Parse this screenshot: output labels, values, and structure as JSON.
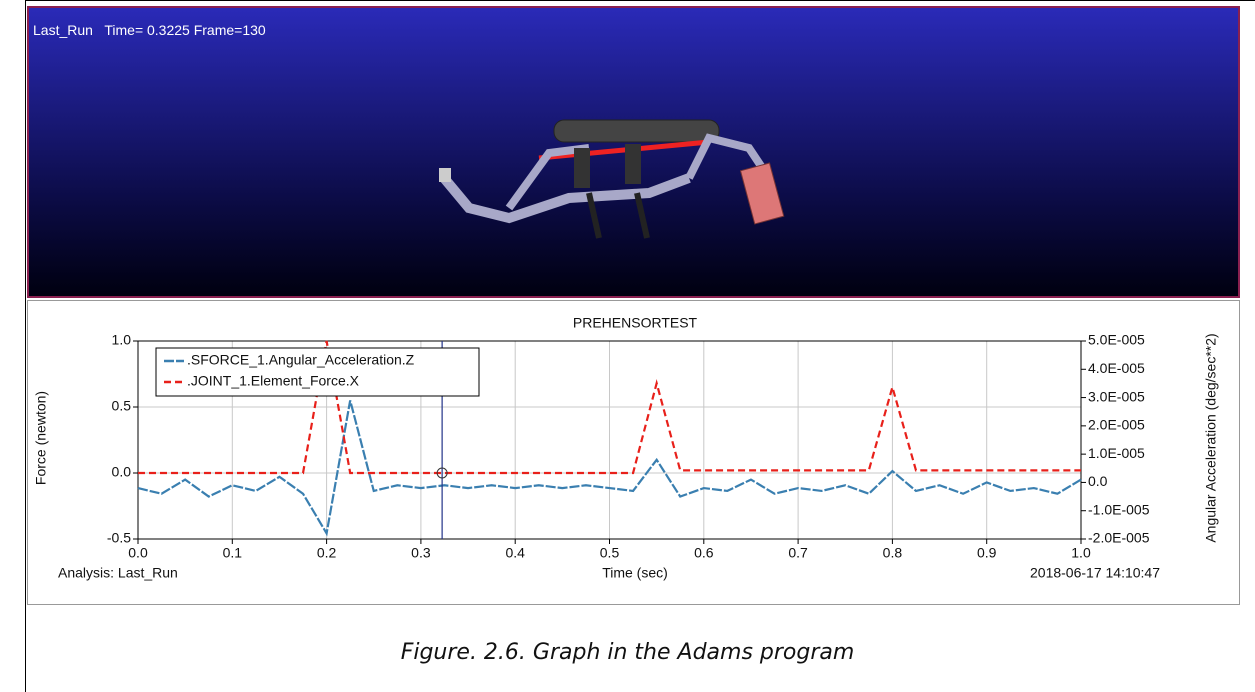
{
  "viewport": {
    "label": "Last_Run   Time= 0.3225 Frame=130"
  },
  "chart_data": {
    "type": "line",
    "title": "PREHENSORTEST",
    "x_label": "Time (sec)",
    "y_label": "Force (newton)",
    "y2_label": "Angular Acceleration (deg/sec**2)",
    "footer_left": "Analysis:  Last_Run",
    "footer_right": "2018-06-17 14:10:47",
    "x": [
      0,
      0.025,
      0.05,
      0.075,
      0.1,
      0.125,
      0.15,
      0.175,
      0.2,
      0.225,
      0.25,
      0.275,
      0.3,
      0.325,
      0.35,
      0.375,
      0.4,
      0.425,
      0.45,
      0.475,
      0.5,
      0.525,
      0.55,
      0.575,
      0.6,
      0.625,
      0.65,
      0.675,
      0.7,
      0.725,
      0.75,
      0.775,
      0.8,
      0.825,
      0.85,
      0.875,
      0.9,
      0.925,
      0.95,
      0.975,
      1.0
    ],
    "series": [
      {
        "name": ".SFORCE_1.Angular_Acceleration.Z",
        "color": "#3a7fb0",
        "axis": "y2",
        "values": [
          -2e-06,
          -4e-06,
          1e-06,
          -5e-06,
          -1e-06,
          -3e-06,
          2e-06,
          -4e-06,
          -1.8e-05,
          2.9e-05,
          -3e-06,
          -1e-06,
          -2e-06,
          -1e-06,
          -2e-06,
          -1e-06,
          -2e-06,
          -1e-06,
          -2e-06,
          -1e-06,
          -2e-06,
          -3e-06,
          8e-06,
          -5e-06,
          -2e-06,
          -3e-06,
          1e-06,
          -4e-06,
          -2e-06,
          -3e-06,
          -1e-06,
          -4e-06,
          4e-06,
          -3e-06,
          -1e-06,
          -4e-06,
          0,
          -3e-06,
          -2e-06,
          -4e-06,
          1e-06
        ]
      },
      {
        "name": ".JOINT_1.Element_Force.X",
        "color": "#e8201a",
        "values": [
          0,
          0,
          0,
          0,
          0,
          0,
          0,
          0,
          1.0,
          0,
          0,
          0,
          0,
          0,
          0,
          0,
          0,
          0,
          0,
          0,
          0,
          0,
          0.68,
          0.02,
          0.02,
          0.02,
          0.02,
          0.02,
          0.02,
          0.02,
          0.02,
          0.02,
          0.65,
          0.02,
          0.02,
          0.02,
          0.02,
          0.02,
          0.02,
          0.02,
          0.02
        ]
      }
    ],
    "xlim": [
      0,
      1.0
    ],
    "xticks": [
      {
        "value": 0,
        "label": "0.0"
      },
      0.1,
      0.2,
      0.3,
      0.4,
      0.5,
      0.6,
      0.7,
      0.8,
      0.9,
      {
        "value": 1,
        "label": "1.0"
      }
    ],
    "ylim": [
      -0.5,
      1.0
    ],
    "yticks": [
      -0.5,
      {
        "value": 0,
        "label": "0.0"
      },
      0.5,
      {
        "value": 1,
        "label": "1.0"
      }
    ],
    "y2lim": [
      -2e-05,
      5e-05
    ],
    "y2ticks": [
      {
        "value": -2e-05,
        "label": "-2.0E-005"
      },
      {
        "value": -1e-05,
        "label": "-1.0E-005"
      },
      {
        "value": 0,
        "label": "0.0"
      },
      {
        "value": 1e-05,
        "label": "1.0E-005"
      },
      {
        "value": 2e-05,
        "label": "2.0E-005"
      },
      {
        "value": 3e-05,
        "label": "3.0E-005"
      },
      {
        "value": 4e-05,
        "label": "4.0E-005"
      },
      {
        "value": 5e-05,
        "label": "5.0E-005"
      }
    ],
    "grid": true,
    "legend": "top-left",
    "cursor": 0.3225
  },
  "caption": "Figure. 2.6. Graph in the Adams program"
}
